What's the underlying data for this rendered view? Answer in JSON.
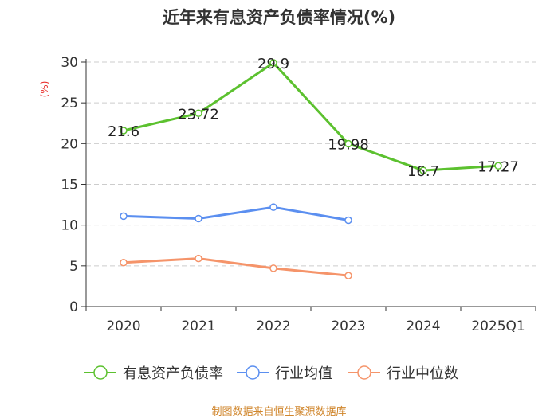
{
  "chart_data": {
    "type": "line",
    "title": "近年来有息资产负债率情况(%)",
    "ylabel": "(%)",
    "categories": [
      "2020",
      "2021",
      "2022",
      "2023",
      "2024",
      "2025Q1"
    ],
    "ylim": [
      0,
      30
    ],
    "yticks": [
      0,
      5,
      10,
      15,
      20,
      25,
      30
    ],
    "grid": true,
    "legend_position": "bottom",
    "series": [
      {
        "name": "有息资产负债率",
        "color": "#5cc12f",
        "show_labels": true,
        "values": [
          21.6,
          23.72,
          29.9,
          19.98,
          16.7,
          17.27
        ]
      },
      {
        "name": "行业均值",
        "color": "#5b8ff0",
        "show_labels": false,
        "values": [
          11.1,
          10.8,
          12.2,
          10.6,
          null,
          null
        ]
      },
      {
        "name": "行业中位数",
        "color": "#f5946a",
        "show_labels": false,
        "values": [
          5.4,
          5.9,
          4.7,
          3.8,
          null,
          null
        ]
      }
    ]
  },
  "source": "制图数据来自恒生聚源数据库"
}
